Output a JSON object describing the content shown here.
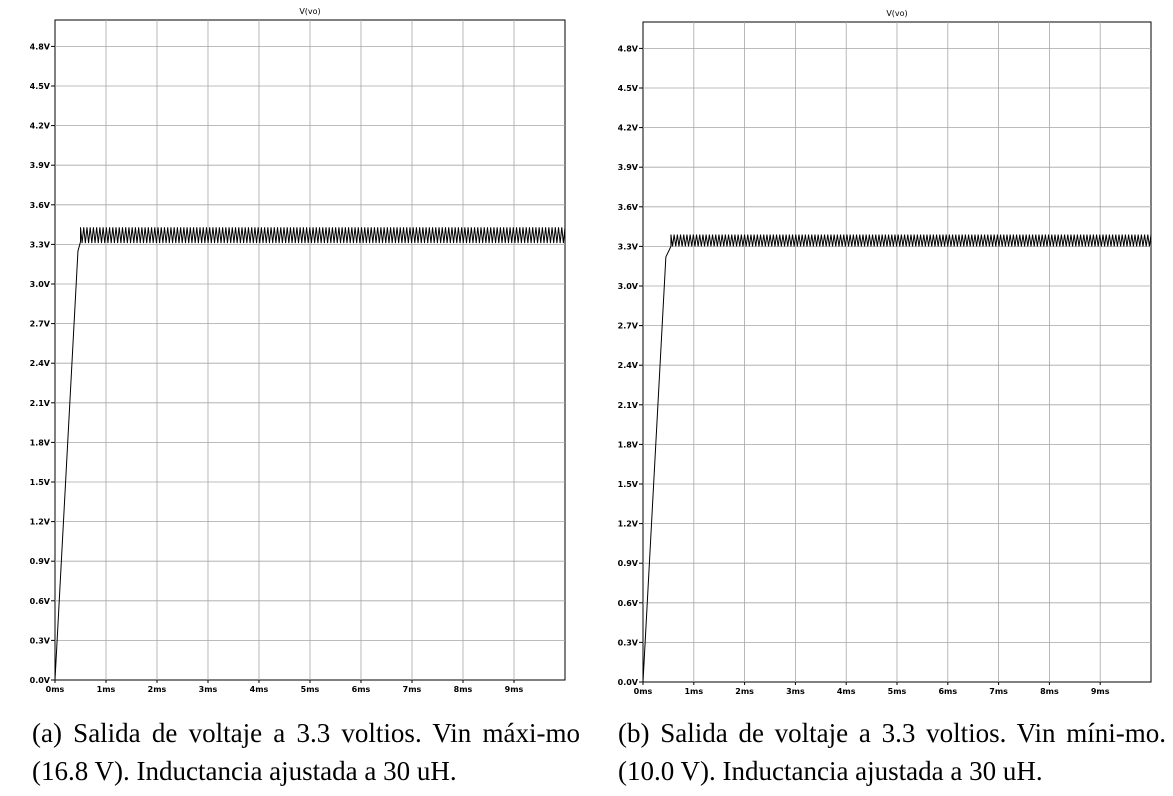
{
  "chart_data": [
    {
      "type": "line",
      "title": "V(vo)",
      "caption": "(a) Salida de voltaje a 3.3 voltios. Vin máxi-mo (16.8 V). Inductancia ajustada a 30 uH.",
      "x_unit": "ms",
      "y_unit": "V",
      "xlim": [
        0,
        10
      ],
      "ylim": [
        0,
        5.0
      ],
      "x_ticks": [
        "0ms",
        "1ms",
        "2ms",
        "3ms",
        "4ms",
        "5ms",
        "6ms",
        "7ms",
        "8ms",
        "9ms"
      ],
      "y_ticks": [
        "0.0V",
        "0.3V",
        "0.6V",
        "0.9V",
        "1.2V",
        "1.5V",
        "1.8V",
        "2.1V",
        "2.4V",
        "2.7V",
        "3.0V",
        "3.3V",
        "3.6V",
        "3.9V",
        "4.2V",
        "4.5V",
        "4.8V"
      ],
      "grid": true,
      "series": [
        {
          "rise": [
            [
              0.0,
              0.0
            ],
            [
              0.45,
              3.25
            ],
            [
              0.5,
              3.32
            ]
          ],
          "steady_min": 3.31,
          "steady_max": 3.43,
          "steady_start": 0.5,
          "steady_end": 10.0,
          "color": "#000000"
        }
      ]
    },
    {
      "type": "line",
      "title": "V(vo)",
      "caption": "(b) Salida de voltaje a 3.3 voltios. Vin míni-mo. (10.0 V). Inductancia ajustada a 30 uH.",
      "x_unit": "ms",
      "y_unit": "V",
      "xlim": [
        0,
        10
      ],
      "ylim": [
        0,
        5.0
      ],
      "x_ticks": [
        "0ms",
        "1ms",
        "2ms",
        "3ms",
        "4ms",
        "5ms",
        "6ms",
        "7ms",
        "8ms",
        "9ms"
      ],
      "y_ticks": [
        "0.0V",
        "0.3V",
        "0.6V",
        "0.9V",
        "1.2V",
        "1.5V",
        "1.8V",
        "2.1V",
        "2.4V",
        "2.7V",
        "3.0V",
        "3.3V",
        "3.6V",
        "3.9V",
        "4.2V",
        "4.5V",
        "4.8V"
      ],
      "grid": true,
      "series": [
        {
          "rise": [
            [
              0.0,
              0.0
            ],
            [
              0.45,
              3.22
            ],
            [
              0.55,
              3.3
            ]
          ],
          "steady_min": 3.3,
          "steady_max": 3.39,
          "steady_start": 0.55,
          "steady_end": 10.0,
          "color": "#000000"
        }
      ]
    }
  ]
}
